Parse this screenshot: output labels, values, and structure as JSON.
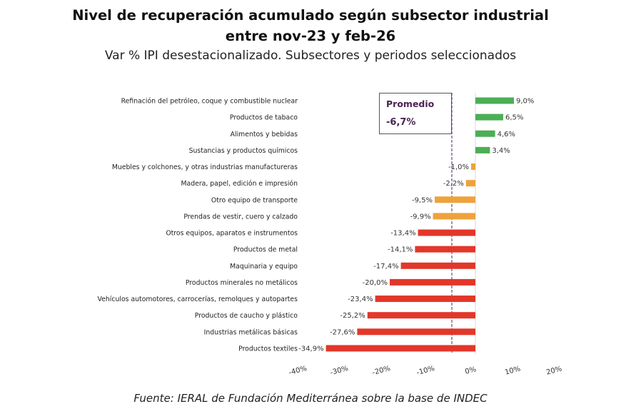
{
  "title_line1": "Nivel de recuperación acumulado según subsector industrial",
  "title_line2": "entre nov-23 y feb-26",
  "subtitle": "Var % IPI desestacionalizado. Subsectores y periodos seleccionados",
  "source": "Fuente: IERAL de Fundación Mediterránea sobre la base de INDEC",
  "chart_data": {
    "type": "bar",
    "orientation": "horizontal",
    "title": "Nivel de recuperación acumulado según subsector industrial entre nov-23 y feb-26",
    "subtitle": "Var % IPI desestacionalizado. Subsectores y periodos seleccionados",
    "categories": [
      "Refinación del petróleo, coque y combustible nuclear",
      "Productos de tabaco",
      "Alimentos y bebidas",
      "Sustancias y productos químicos",
      "Muebles y colchones, y otras industrias manufactureras",
      "Madera, papel, edición e impresión",
      "Otro equipo de transporte",
      "Prendas de vestir, cuero y calzado",
      "Otros equipos, aparatos e instrumentos",
      "Productos de metal",
      "Maquinaria y equipo",
      "Productos minerales no metálicos",
      "Vehículos automotores, carrocerías, remolques y autopartes",
      "Productos de caucho y plástico",
      "Industrias metálicas básicas",
      "Productos textiles"
    ],
    "values": [
      9.0,
      6.5,
      4.6,
      3.4,
      -1.0,
      -2.2,
      -9.5,
      -9.9,
      -13.4,
      -14.1,
      -17.4,
      -20.0,
      -23.4,
      -25.2,
      -27.6,
      -34.9
    ],
    "value_labels": [
      "9,0%",
      "6,5%",
      "4,6%",
      "3,4%",
      "-1,0%",
      "-2,2%",
      "-9,5%",
      "-9,9%",
      "-13,4%",
      "-14,1%",
      "-17,4%",
      "-20,0%",
      "-23,4%",
      "-25,2%",
      "-27,6%",
      "-34,9%"
    ],
    "bar_colors": [
      "green",
      "green",
      "green",
      "green",
      "orange",
      "orange",
      "orange",
      "orange",
      "red",
      "red",
      "red",
      "red",
      "red",
      "red",
      "red",
      "red"
    ],
    "colors": {
      "green": "#4cae55",
      "orange": "#eea23c",
      "red": "#e2372a",
      "average_line": "#8a6a9a"
    },
    "xlim": [
      -40,
      20
    ],
    "x_ticks": [
      -40,
      -30,
      -20,
      -10,
      0,
      10,
      20
    ],
    "x_tick_labels": [
      "-40%",
      "-30%",
      "-20%",
      "-10%",
      "0%",
      "10%",
      "20%"
    ],
    "grid": false,
    "average": {
      "label": "Promedio",
      "value": -6.7,
      "value_label": "-6,7%"
    }
  }
}
